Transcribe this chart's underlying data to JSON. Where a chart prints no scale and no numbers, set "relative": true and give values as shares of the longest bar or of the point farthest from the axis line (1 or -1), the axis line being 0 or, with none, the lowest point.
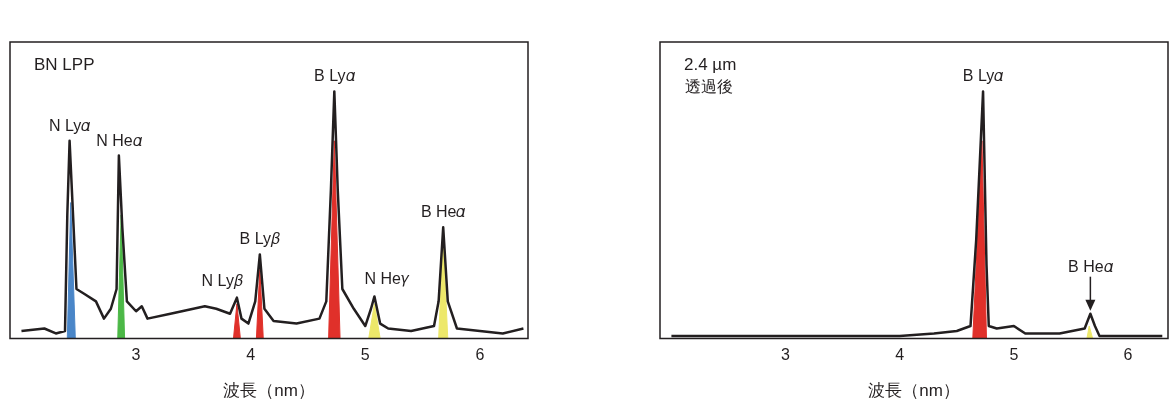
{
  "chart_data": [
    {
      "type": "line",
      "title": "BN LPP",
      "xlabel": "波長（nm）",
      "relative": true,
      "xlim": [
        1.9,
        6.42
      ],
      "xticks": [
        3,
        4,
        5,
        6
      ],
      "grid": false,
      "legend": false,
      "tick_labels": "x",
      "marker": "none",
      "line_style": "solid",
      "series": [
        {
          "color": "#231f20",
          "x": [
            2.0,
            2.2,
            2.3,
            2.38,
            2.4,
            2.42,
            2.45,
            2.48,
            2.55,
            2.65,
            2.72,
            2.78,
            2.83,
            2.85,
            2.88,
            2.92,
            3.0,
            3.05,
            3.1,
            3.3,
            3.5,
            3.6,
            3.7,
            3.82,
            3.88,
            3.92,
            3.98,
            4.04,
            4.08,
            4.12,
            4.2,
            4.4,
            4.6,
            4.66,
            4.7,
            4.73,
            4.76,
            4.8,
            4.9,
            5.0,
            5.05,
            5.08,
            5.13,
            5.2,
            5.4,
            5.6,
            5.64,
            5.68,
            5.72,
            5.8,
            6.0,
            6.2,
            6.38
          ],
          "values": [
            0.03,
            0.04,
            0.02,
            0.03,
            0.5,
            0.8,
            0.5,
            0.2,
            0.18,
            0.15,
            0.08,
            0.12,
            0.2,
            0.74,
            0.45,
            0.15,
            0.11,
            0.13,
            0.08,
            0.1,
            0.12,
            0.13,
            0.12,
            0.1,
            0.165,
            0.08,
            0.06,
            0.15,
            0.34,
            0.12,
            0.07,
            0.06,
            0.08,
            0.15,
            0.6,
            1.0,
            0.6,
            0.2,
            0.12,
            0.05,
            0.12,
            0.17,
            0.06,
            0.04,
            0.03,
            0.05,
            0.15,
            0.45,
            0.15,
            0.04,
            0.03,
            0.02,
            0.04
          ]
        },
        {
          "type": "area",
          "color": "#4a86c8",
          "x": [
            2.4,
            2.43,
            2.47
          ],
          "values": [
            0,
            0.55,
            0
          ]
        },
        {
          "type": "area",
          "color": "#4cb847",
          "x": [
            2.84,
            2.87,
            2.9
          ],
          "values": [
            0,
            0.5,
            0
          ]
        },
        {
          "type": "area",
          "color": "#e0302a",
          "x": [
            3.85,
            3.88,
            3.91
          ],
          "values": [
            0,
            0.14,
            0
          ]
        },
        {
          "type": "area",
          "color": "#e0302a",
          "x": [
            4.05,
            4.08,
            4.11
          ],
          "values": [
            0,
            0.28,
            0
          ]
        },
        {
          "type": "area",
          "color": "#e0302a",
          "x": [
            4.68,
            4.73,
            4.78
          ],
          "values": [
            0,
            0.8,
            0
          ]
        },
        {
          "type": "area",
          "color": "#ede86a",
          "x": [
            5.03,
            5.08,
            5.13
          ],
          "values": [
            0,
            0.14,
            0
          ]
        },
        {
          "type": "area",
          "color": "#ede86a",
          "x": [
            5.64,
            5.68,
            5.72
          ],
          "values": [
            0,
            0.4,
            0
          ]
        }
      ],
      "annotations": [
        {
          "text": "N Ly𝛼",
          "x": 2.42,
          "y": 0.8
        },
        {
          "text": "N He𝛼",
          "x": 2.85,
          "y": 0.74
        },
        {
          "text": "N Ly𝛽",
          "x": 3.88,
          "y": 0.165
        },
        {
          "text": "B Ly𝛽",
          "x": 4.08,
          "y": 0.34
        },
        {
          "text": "B Ly𝛼",
          "x": 4.73,
          "y": 1.0
        },
        {
          "text": "N He𝛾",
          "x": 5.08,
          "y": 0.17
        },
        {
          "text": "B He𝛼",
          "x": 5.68,
          "y": 0.45
        }
      ]
    },
    {
      "type": "line",
      "title": "2.4 µm",
      "subtitle": "透過後",
      "xlabel": "波長（nm）",
      "relative": true,
      "xlim": [
        1.9,
        6.35
      ],
      "xticks": [
        3,
        4,
        5,
        6
      ],
      "grid": false,
      "legend": false,
      "tick_labels": "x",
      "marker": "none",
      "line_style": "solid",
      "series": [
        {
          "color": "#231f20",
          "x": [
            2.0,
            2.5,
            3.0,
            3.5,
            4.0,
            4.3,
            4.5,
            4.62,
            4.67,
            4.7,
            4.73,
            4.76,
            4.78,
            4.85,
            5.0,
            5.1,
            5.4,
            5.62,
            5.67,
            5.71,
            5.75,
            6.0,
            6.3
          ],
          "values": [
            0.01,
            0.01,
            0.01,
            0.01,
            0.01,
            0.02,
            0.03,
            0.05,
            0.4,
            0.7,
            1.0,
            0.3,
            0.05,
            0.04,
            0.05,
            0.02,
            0.02,
            0.04,
            0.1,
            0.05,
            0.01,
            0.01,
            0.01
          ]
        },
        {
          "type": "area",
          "color": "#e0302a",
          "x": [
            4.64,
            4.72,
            4.76
          ],
          "values": [
            0,
            0.8,
            0
          ]
        },
        {
          "type": "area",
          "color": "#ede86a",
          "x": [
            5.64,
            5.66,
            5.69
          ],
          "values": [
            0,
            0.05,
            0
          ]
        }
      ],
      "annotations": [
        {
          "text": "B Ly𝛼",
          "x": 4.73,
          "y": 1.0
        },
        {
          "text": "B He𝛼",
          "x": 5.67,
          "y": 0.1
        }
      ]
    }
  ]
}
